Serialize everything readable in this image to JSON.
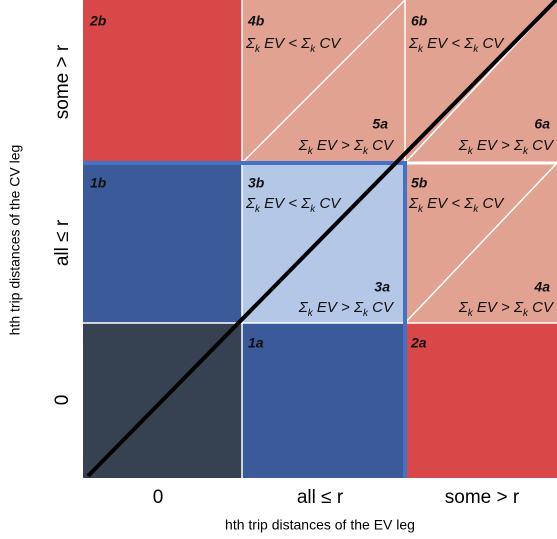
{
  "y_axis": {
    "title": "hth trip distances of the CV leg",
    "labels": [
      "0",
      "all ≤ r",
      "some > r"
    ]
  },
  "x_axis": {
    "title": "hth trip distances of the EV leg",
    "labels": [
      "0",
      "all ≤ r",
      "some > r"
    ]
  },
  "regions": [
    {
      "label": "2b"
    },
    {
      "label": "4b",
      "formula": [
        "Σ",
        "k",
        " EV < ",
        "Σ",
        "k",
        " CV"
      ]
    },
    {
      "label": "5a",
      "formula": [
        "Σ",
        "k",
        " EV > ",
        "Σ",
        "k",
        " CV"
      ]
    },
    {
      "label": "6b",
      "formula": [
        "Σ",
        "k",
        " EV < ",
        "Σ",
        "k",
        " CV"
      ]
    },
    {
      "label": "6a",
      "formula": [
        "Σ",
        "k",
        " EV > ",
        "Σ",
        "k",
        " CV"
      ]
    },
    {
      "label": "1b"
    },
    {
      "label": "3b",
      "formula": [
        "Σ",
        "k",
        " EV < ",
        "Σ",
        "k",
        " CV"
      ]
    },
    {
      "label": "3a",
      "formula": [
        "Σ",
        "k",
        " EV > ",
        "Σ",
        "k",
        " CV"
      ]
    },
    {
      "label": "5b",
      "formula": [
        "Σ",
        "k",
        " EV < ",
        "Σ",
        "k",
        " CV"
      ]
    },
    {
      "label": "4a",
      "formula": [
        "Σ",
        "k",
        " EV > ",
        "Σ",
        "k",
        " CV"
      ]
    },
    {
      "label": "1a"
    },
    {
      "label": "2a"
    }
  ]
}
